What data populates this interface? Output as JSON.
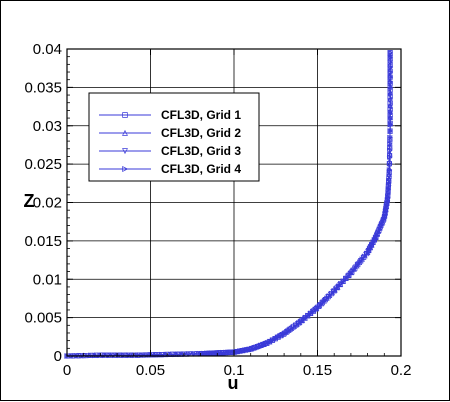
{
  "chart_data": {
    "type": "line",
    "xlabel": "u",
    "ylabel": "Z",
    "xlim": [
      0,
      0.2
    ],
    "ylim": [
      0,
      0.04
    ],
    "x_ticks": [
      "0",
      "0.05",
      "0.1",
      "0.15",
      "0.2"
    ],
    "y_ticks": [
      "0",
      "0.005",
      "0.01",
      "0.015",
      "0.02",
      "0.025",
      "0.03",
      "0.035",
      "0.04"
    ],
    "grid": true,
    "legend_position": "upper-left",
    "series_color": "#3a3ad8",
    "series": [
      {
        "name": "CFL3D, Grid 1",
        "marker": "square"
      },
      {
        "name": "CFL3D, Grid 2",
        "marker": "triangle-up"
      },
      {
        "name": "CFL3D, Grid 3",
        "marker": "triangle-down"
      },
      {
        "name": "CFL3D, Grid 4",
        "marker": "triangle-right"
      }
    ],
    "profile": {
      "u": [
        0.0,
        0.02,
        0.04,
        0.06,
        0.08,
        0.09,
        0.1,
        0.11,
        0.12,
        0.13,
        0.14,
        0.15,
        0.16,
        0.17,
        0.18,
        0.185,
        0.19,
        0.192,
        0.193,
        0.1935,
        0.1935,
        0.1935
      ],
      "z": [
        0.0,
        0.0001,
        0.0001,
        0.0002,
        0.0003,
        0.0004,
        0.0005,
        0.0009,
        0.0017,
        0.0029,
        0.0045,
        0.0063,
        0.0085,
        0.0108,
        0.0135,
        0.0155,
        0.018,
        0.0205,
        0.024,
        0.03,
        0.035,
        0.0395
      ]
    }
  }
}
